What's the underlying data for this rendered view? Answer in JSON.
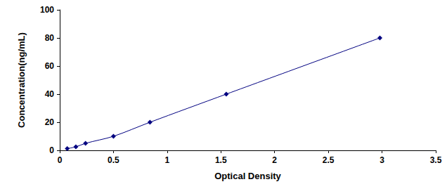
{
  "chart_data": {
    "type": "line",
    "xlabel": "Optical Density",
    "ylabel": "Concentration(ng/mL)",
    "x": [
      0.07,
      0.15,
      0.24,
      0.5,
      0.84,
      1.55,
      2.98
    ],
    "values": [
      1.25,
      2.5,
      5,
      10,
      20,
      40,
      80
    ],
    "xlim": [
      0,
      3.5
    ],
    "xticks": [
      0,
      0.5,
      1,
      1.5,
      2,
      2.5,
      3,
      3.5
    ],
    "ylim": [
      0,
      100
    ],
    "yticks": [
      0,
      20,
      40,
      60,
      80,
      100
    ],
    "color": "#000080",
    "marker": "diamond",
    "line_style": "solid",
    "grid": false
  }
}
